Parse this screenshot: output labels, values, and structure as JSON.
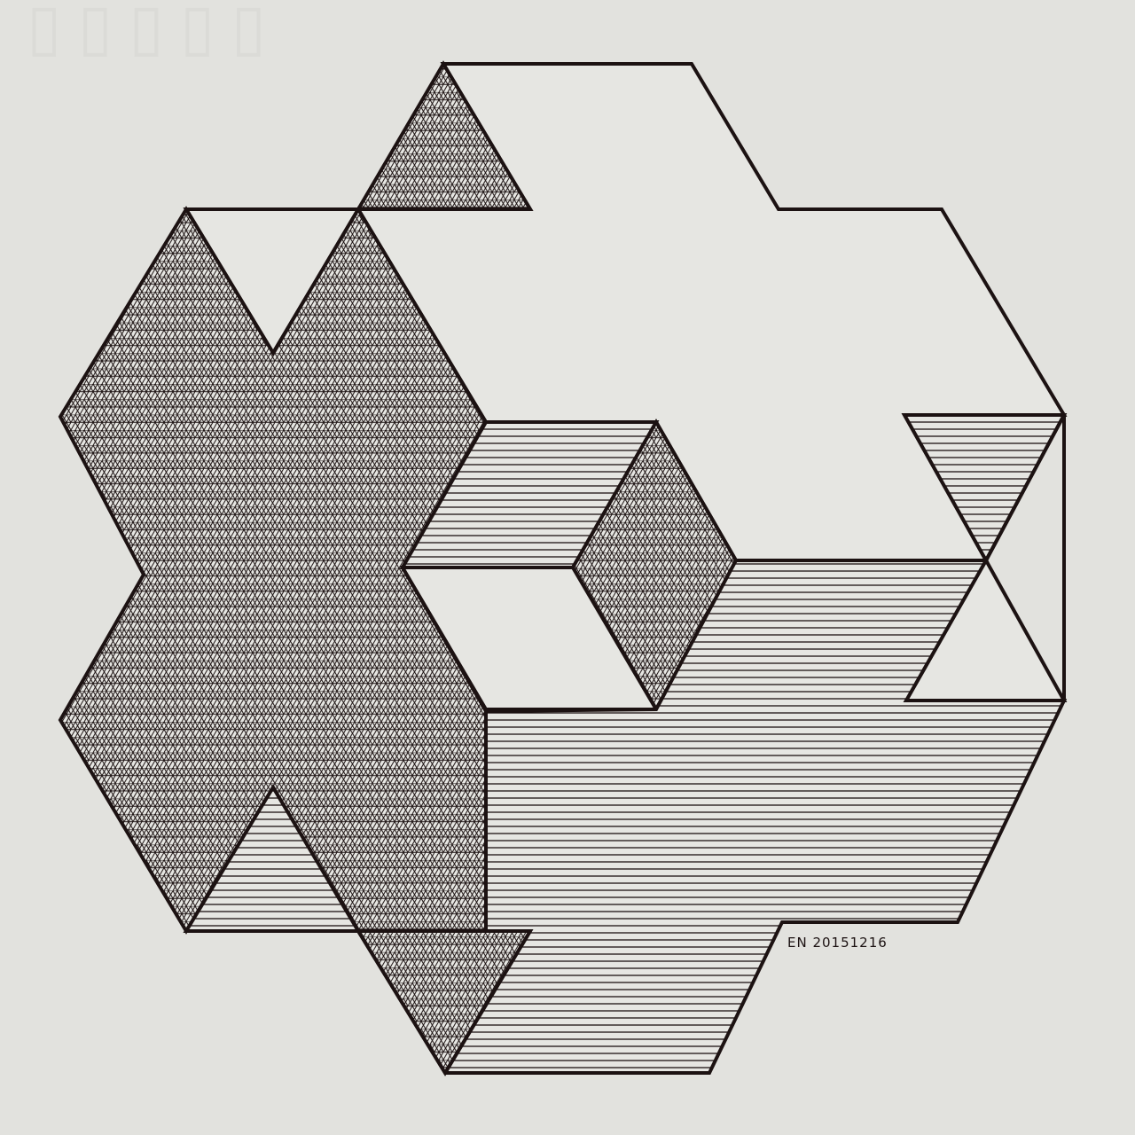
{
  "artwork": {
    "subject": "isometric cube assemblage drawing",
    "signature": "EN 20151216",
    "colors": {
      "paper": "#e2e2de",
      "ink": "#1c1212",
      "ghost_text": "#d6d6d2"
    },
    "fill_styles": [
      "blank",
      "triangular-crosshatch",
      "horizontal-hatch"
    ]
  }
}
